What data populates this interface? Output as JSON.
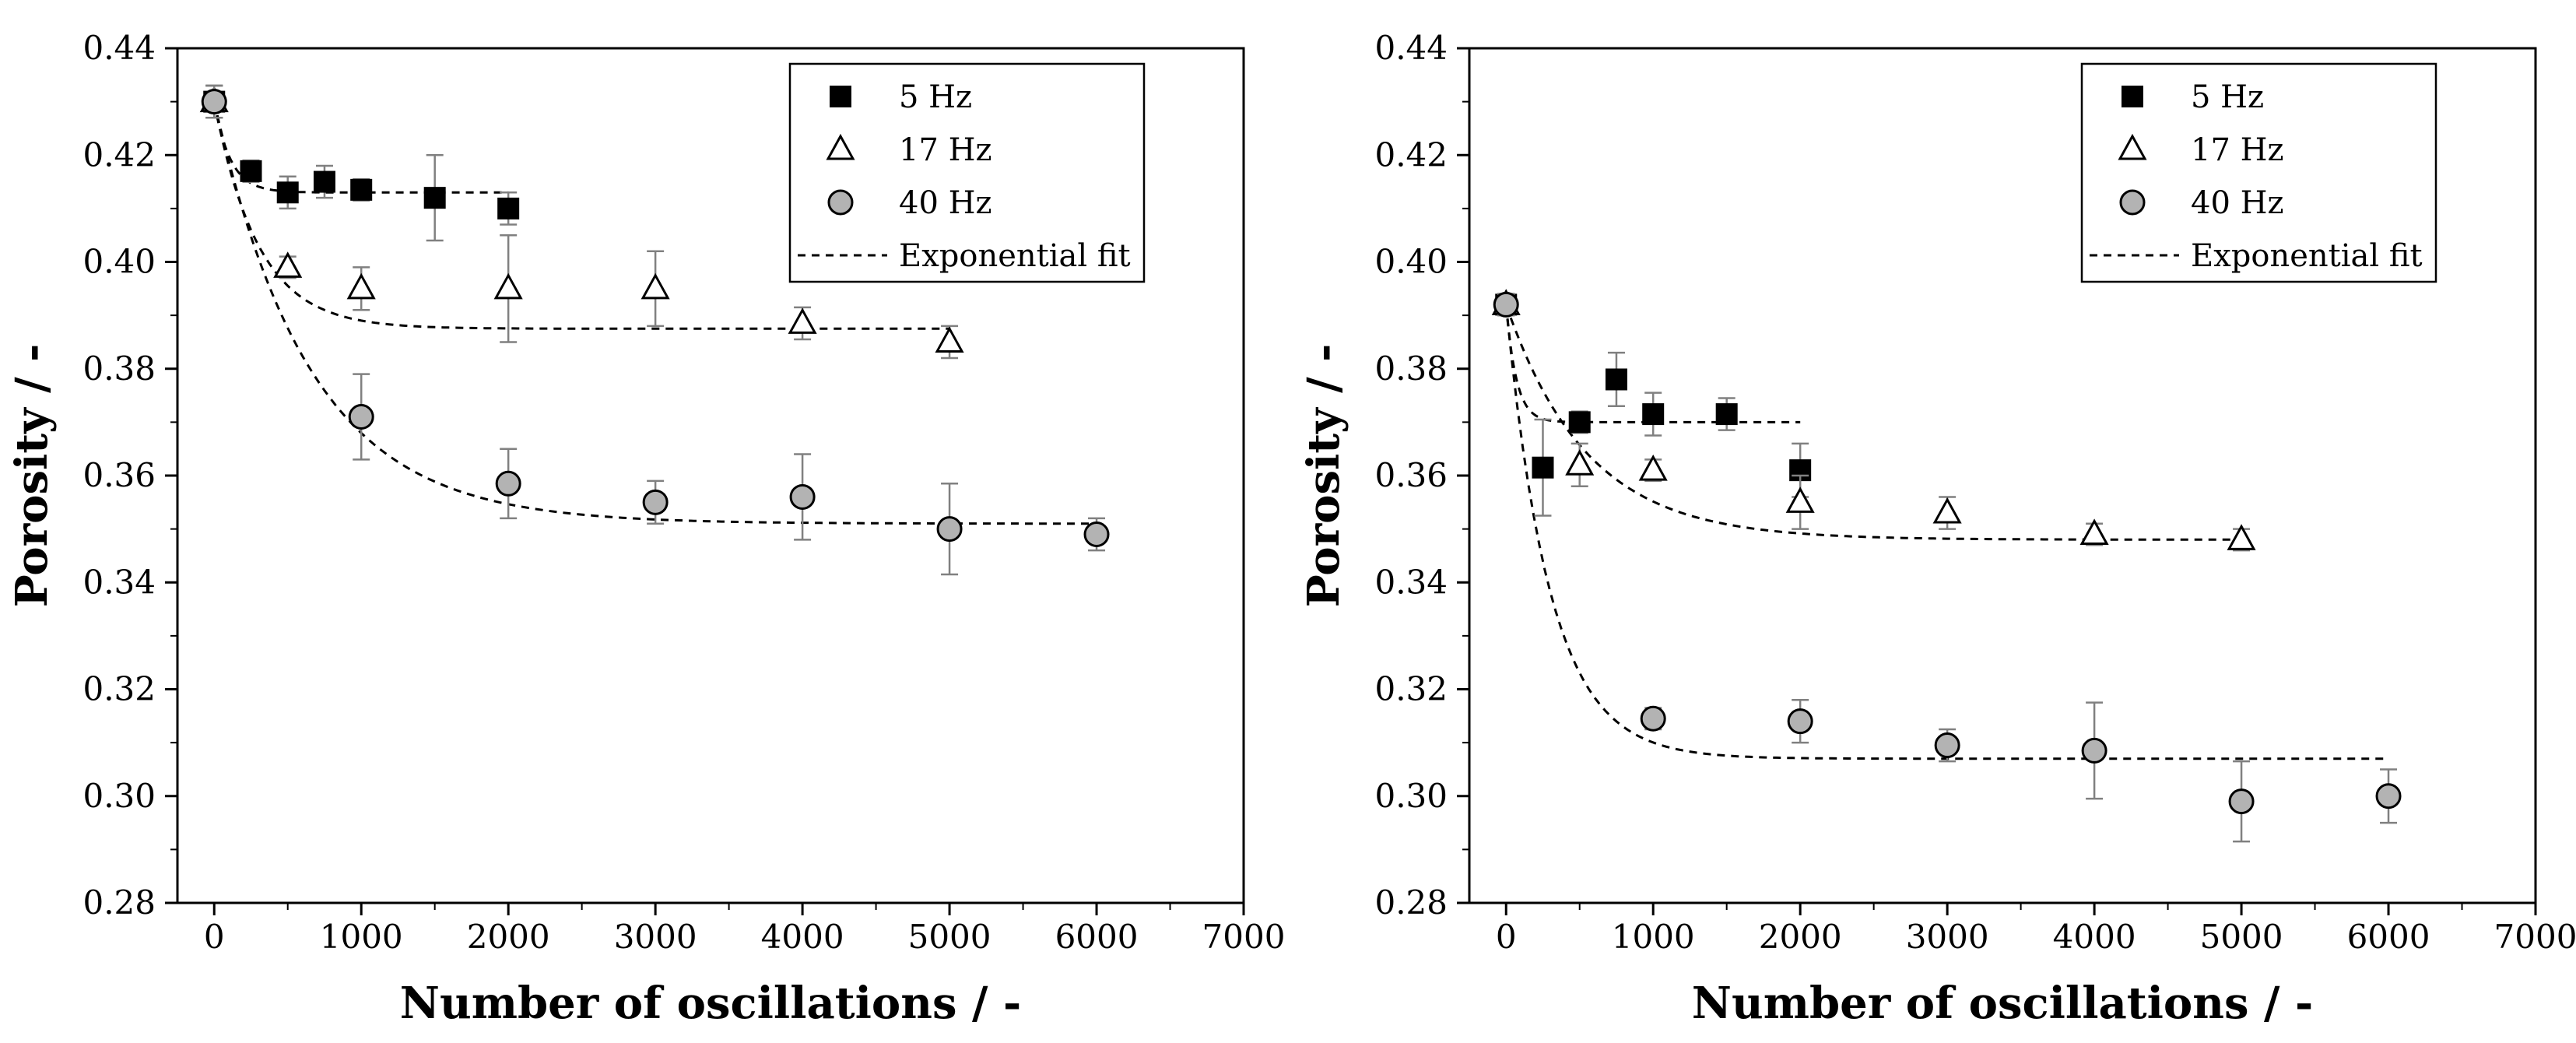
{
  "chart_data": [
    {
      "type": "scatter",
      "title": "",
      "xlabel": "Number of oscillations / -",
      "ylabel": "Porosity / -",
      "xlim": [
        -250,
        7000
      ],
      "ylim": [
        0.28,
        0.44
      ],
      "xticks": [
        0,
        1000,
        2000,
        3000,
        4000,
        5000,
        6000,
        7000
      ],
      "xtick_labels": [
        "0",
        "1000",
        "2000",
        "3000",
        "4000",
        "5000",
        "6000",
        "7000"
      ],
      "yticks": [
        0.28,
        0.3,
        0.32,
        0.34,
        0.36,
        0.38,
        0.4,
        0.42,
        0.44
      ],
      "ytick_labels": [
        "0.28",
        "0.30",
        "0.32",
        "0.34",
        "0.36",
        "0.38",
        "0.40",
        "0.42",
        "0.44"
      ],
      "legend_position": "top-right",
      "fit_label": "Exponential fit",
      "series": [
        {
          "name": "5 Hz",
          "marker": "square-filled",
          "x": [
            0,
            250,
            500,
            750,
            1000,
            1500,
            2000
          ],
          "y": [
            0.43,
            0.417,
            0.413,
            0.415,
            0.4135,
            0.412,
            0.41
          ],
          "err": [
            0.003,
            0.002,
            0.003,
            0.003,
            0.002,
            0.008,
            0.003
          ],
          "fit": {
            "y0": 0.413,
            "A": 0.017,
            "t": 110,
            "x_end": 2000
          }
        },
        {
          "name": "17 Hz",
          "marker": "triangle-open",
          "x": [
            0,
            500,
            1000,
            2000,
            3000,
            4000,
            5000
          ],
          "y": [
            0.43,
            0.399,
            0.395,
            0.395,
            0.395,
            0.3885,
            0.385
          ],
          "err": [
            0.003,
            0.002,
            0.004,
            0.01,
            0.007,
            0.003,
            0.003
          ],
          "fit": {
            "y0": 0.3875,
            "A": 0.0425,
            "t": 300,
            "x_end": 5000
          }
        },
        {
          "name": "40 Hz",
          "marker": "circle-gray",
          "x": [
            0,
            1000,
            2000,
            3000,
            4000,
            5000,
            6000
          ],
          "y": [
            0.43,
            0.371,
            0.3585,
            0.355,
            0.356,
            0.35,
            0.349
          ],
          "err": [
            0.003,
            0.008,
            0.0065,
            0.004,
            0.008,
            0.0085,
            0.003
          ],
          "fit": {
            "y0": 0.351,
            "A": 0.079,
            "t": 650,
            "x_end": 6000
          }
        }
      ]
    },
    {
      "type": "scatter",
      "title": "",
      "xlabel": "Number of oscillations / -",
      "ylabel": "Porosity / -",
      "xlim": [
        -250,
        7000
      ],
      "ylim": [
        0.28,
        0.44
      ],
      "xticks": [
        0,
        1000,
        2000,
        3000,
        4000,
        5000,
        6000,
        7000
      ],
      "xtick_labels": [
        "0",
        "1000",
        "2000",
        "3000",
        "4000",
        "5000",
        "6000",
        "7000"
      ],
      "yticks": [
        0.28,
        0.3,
        0.32,
        0.34,
        0.36,
        0.38,
        0.4,
        0.42,
        0.44
      ],
      "ytick_labels": [
        "0.28",
        "0.30",
        "0.32",
        "0.34",
        "0.36",
        "0.38",
        "0.40",
        "0.42",
        "0.44"
      ],
      "legend_position": "top-right",
      "fit_label": "Exponential fit",
      "series": [
        {
          "name": "5 Hz",
          "marker": "square-filled",
          "x": [
            0,
            250,
            500,
            750,
            1000,
            1500,
            2000
          ],
          "y": [
            0.392,
            0.3615,
            0.37,
            0.378,
            0.3715,
            0.3715,
            0.361
          ],
          "err": [
            0.002,
            0.009,
            0.002,
            0.005,
            0.004,
            0.003,
            0.005
          ],
          "fit": {
            "y0": 0.37,
            "A": 0.022,
            "t": 70,
            "x_end": 2000
          }
        },
        {
          "name": "17 Hz",
          "marker": "triangle-open",
          "x": [
            0,
            500,
            1000,
            2000,
            3000,
            4000,
            5000
          ],
          "y": [
            0.392,
            0.362,
            0.361,
            0.355,
            0.353,
            0.349,
            0.348
          ],
          "err": [
            0.002,
            0.004,
            0.002,
            0.005,
            0.003,
            0.002,
            0.002
          ],
          "fit": {
            "y0": 0.348,
            "A": 0.044,
            "t": 550,
            "x_end": 5000
          }
        },
        {
          "name": "40 Hz",
          "marker": "circle-gray",
          "x": [
            0,
            1000,
            2000,
            3000,
            4000,
            5000,
            6000
          ],
          "y": [
            0.392,
            0.3145,
            0.314,
            0.3095,
            0.3085,
            0.299,
            0.3
          ],
          "err": [
            0.002,
            0.002,
            0.004,
            0.003,
            0.009,
            0.0075,
            0.005
          ],
          "fit": {
            "y0": 0.307,
            "A": 0.085,
            "t": 300,
            "x_end": 6000
          }
        }
      ]
    }
  ]
}
